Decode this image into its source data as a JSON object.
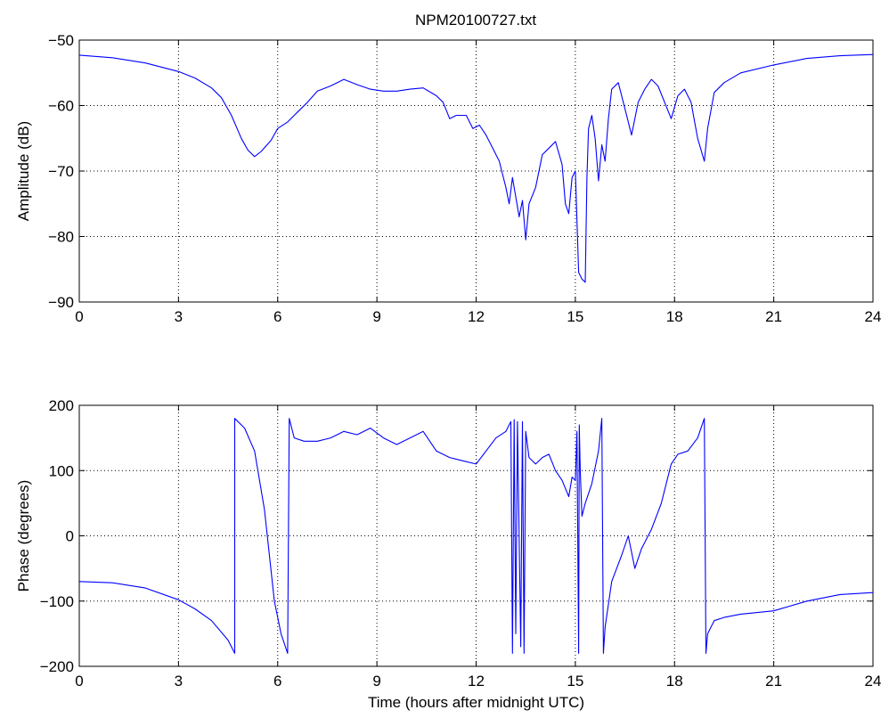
{
  "title": "NPM20100727.txt",
  "chart_data": [
    {
      "type": "line",
      "title": "NPM20100727.txt",
      "xlabel": "",
      "ylabel": "Amplitude (dB)",
      "xlim": [
        0,
        24
      ],
      "ylim": [
        -90,
        -50
      ],
      "xticks": [
        0,
        3,
        6,
        9,
        12,
        15,
        18,
        21,
        24
      ],
      "yticks": [
        -90,
        -80,
        -70,
        -60,
        -50
      ],
      "xtick_labels": [
        "0",
        "3",
        "6",
        "9",
        "12",
        "15",
        "18",
        "21",
        "24"
      ],
      "ytick_labels": [
        "−90",
        "−80",
        "−70",
        "−60",
        "−50"
      ],
      "grid": true,
      "line_color": "#0000ff",
      "series": [
        {
          "x": [
            0,
            1,
            2,
            3,
            3.5,
            4,
            4.3,
            4.6,
            4.9,
            5.1,
            5.3,
            5.5,
            5.8,
            6.0,
            6.3,
            6.6,
            6.9,
            7.2,
            7.6,
            8.0,
            8.4,
            8.8,
            9.2,
            9.6,
            10.0,
            10.4,
            10.8,
            11.0,
            11.2,
            11.4,
            11.7,
            11.9,
            12.1,
            12.3,
            12.5,
            12.7,
            12.9,
            13.0,
            13.1,
            13.3,
            13.4,
            13.5,
            13.6,
            13.8,
            14.0,
            14.2,
            14.4,
            14.6,
            14.7,
            14.8,
            14.9,
            15.0,
            15.1,
            15.2,
            15.3,
            15.35,
            15.4,
            15.5,
            15.6,
            15.7,
            15.8,
            15.9,
            16.0,
            16.1,
            16.3,
            16.5,
            16.7,
            16.9,
            17.1,
            17.3,
            17.5,
            17.7,
            17.9,
            18.1,
            18.3,
            18.5,
            18.7,
            18.9,
            19.0,
            19.2,
            19.5,
            20,
            21,
            22,
            23,
            24
          ],
          "y": [
            -52.3,
            -52.7,
            -53.5,
            -54.8,
            -55.8,
            -57.3,
            -58.8,
            -61.5,
            -65,
            -66.8,
            -67.8,
            -67,
            -65.3,
            -63.5,
            -62.5,
            -61,
            -59.5,
            -57.8,
            -57,
            -56,
            -56.8,
            -57.5,
            -57.8,
            -57.8,
            -57.5,
            -57.3,
            -58.5,
            -59.5,
            -62,
            -61.5,
            -61.5,
            -63.5,
            -63,
            -64.5,
            -66.5,
            -68.5,
            -72.5,
            -75,
            -71,
            -77,
            -74.5,
            -80.5,
            -75,
            -72.5,
            -67.5,
            -66.5,
            -65.5,
            -69,
            -75,
            -76.5,
            -71,
            -70,
            -85.5,
            -86.5,
            -87,
            -71,
            -63.5,
            -61.5,
            -65,
            -71.5,
            -66,
            -68.5,
            -62,
            -57.5,
            -56.5,
            -60.5,
            -64.5,
            -59.5,
            -57.5,
            -56,
            -57,
            -59.5,
            -62,
            -58.5,
            -57.5,
            -59.5,
            -65,
            -68.5,
            -63.5,
            -58,
            -56.5,
            -55,
            -53.8,
            -52.8,
            -52.4,
            -52.2
          ]
        }
      ]
    },
    {
      "type": "line",
      "title": "",
      "xlabel": "Time (hours after midnight UTC)",
      "ylabel": "Phase (degrees)",
      "xlim": [
        0,
        24
      ],
      "ylim": [
        -200,
        200
      ],
      "xticks": [
        0,
        3,
        6,
        9,
        12,
        15,
        18,
        21,
        24
      ],
      "yticks": [
        -200,
        -100,
        0,
        100,
        200
      ],
      "xtick_labels": [
        "0",
        "3",
        "6",
        "9",
        "12",
        "15",
        "18",
        "21",
        "24"
      ],
      "ytick_labels": [
        "−200",
        "−100",
        "0",
        "100",
        "200"
      ],
      "grid": true,
      "line_color": "#0000ff",
      "series": [
        {
          "x": [
            0,
            1,
            2,
            3,
            3.5,
            4,
            4.5,
            4.7,
            4.7,
            5.0,
            5.3,
            5.6,
            5.9,
            6.1,
            6.3,
            6.35,
            6.5,
            6.8,
            7.2,
            7.6,
            8.0,
            8.4,
            8.8,
            9.2,
            9.6,
            10.0,
            10.4,
            10.8,
            11.2,
            11.6,
            12.0,
            12.3,
            12.6,
            12.9,
            13.05,
            13.1,
            13.15,
            13.2,
            13.25,
            13.35,
            13.4,
            13.45,
            13.5,
            13.6,
            13.8,
            14.0,
            14.2,
            14.4,
            14.6,
            14.8,
            14.9,
            15.0,
            15.05,
            15.1,
            15.12,
            15.15,
            15.2,
            15.3,
            15.5,
            15.7,
            15.8,
            15.85,
            15.9,
            16.1,
            16.4,
            16.6,
            16.8,
            17.0,
            17.3,
            17.6,
            17.9,
            18.1,
            18.4,
            18.7,
            18.9,
            18.95,
            19.0,
            19.2,
            19.5,
            20,
            21,
            22,
            23,
            24
          ],
          "y": [
            -70,
            -72,
            -80,
            -98,
            -112,
            -130,
            -160,
            -180,
            180,
            165,
            130,
            40,
            -100,
            -150,
            -180,
            180,
            150,
            145,
            145,
            150,
            160,
            155,
            165,
            150,
            140,
            150,
            160,
            130,
            120,
            115,
            110,
            130,
            150,
            160,
            175,
            -180,
            178,
            -150,
            175,
            -170,
            175,
            -180,
            160,
            120,
            110,
            120,
            125,
            100,
            85,
            60,
            90,
            85,
            160,
            -180,
            170,
            100,
            30,
            50,
            80,
            130,
            180,
            -180,
            -140,
            -70,
            -30,
            0,
            -50,
            -20,
            10,
            50,
            110,
            125,
            130,
            150,
            180,
            -180,
            -150,
            -130,
            -125,
            -120,
            -115,
            -100,
            -90,
            -87
          ]
        }
      ]
    }
  ]
}
